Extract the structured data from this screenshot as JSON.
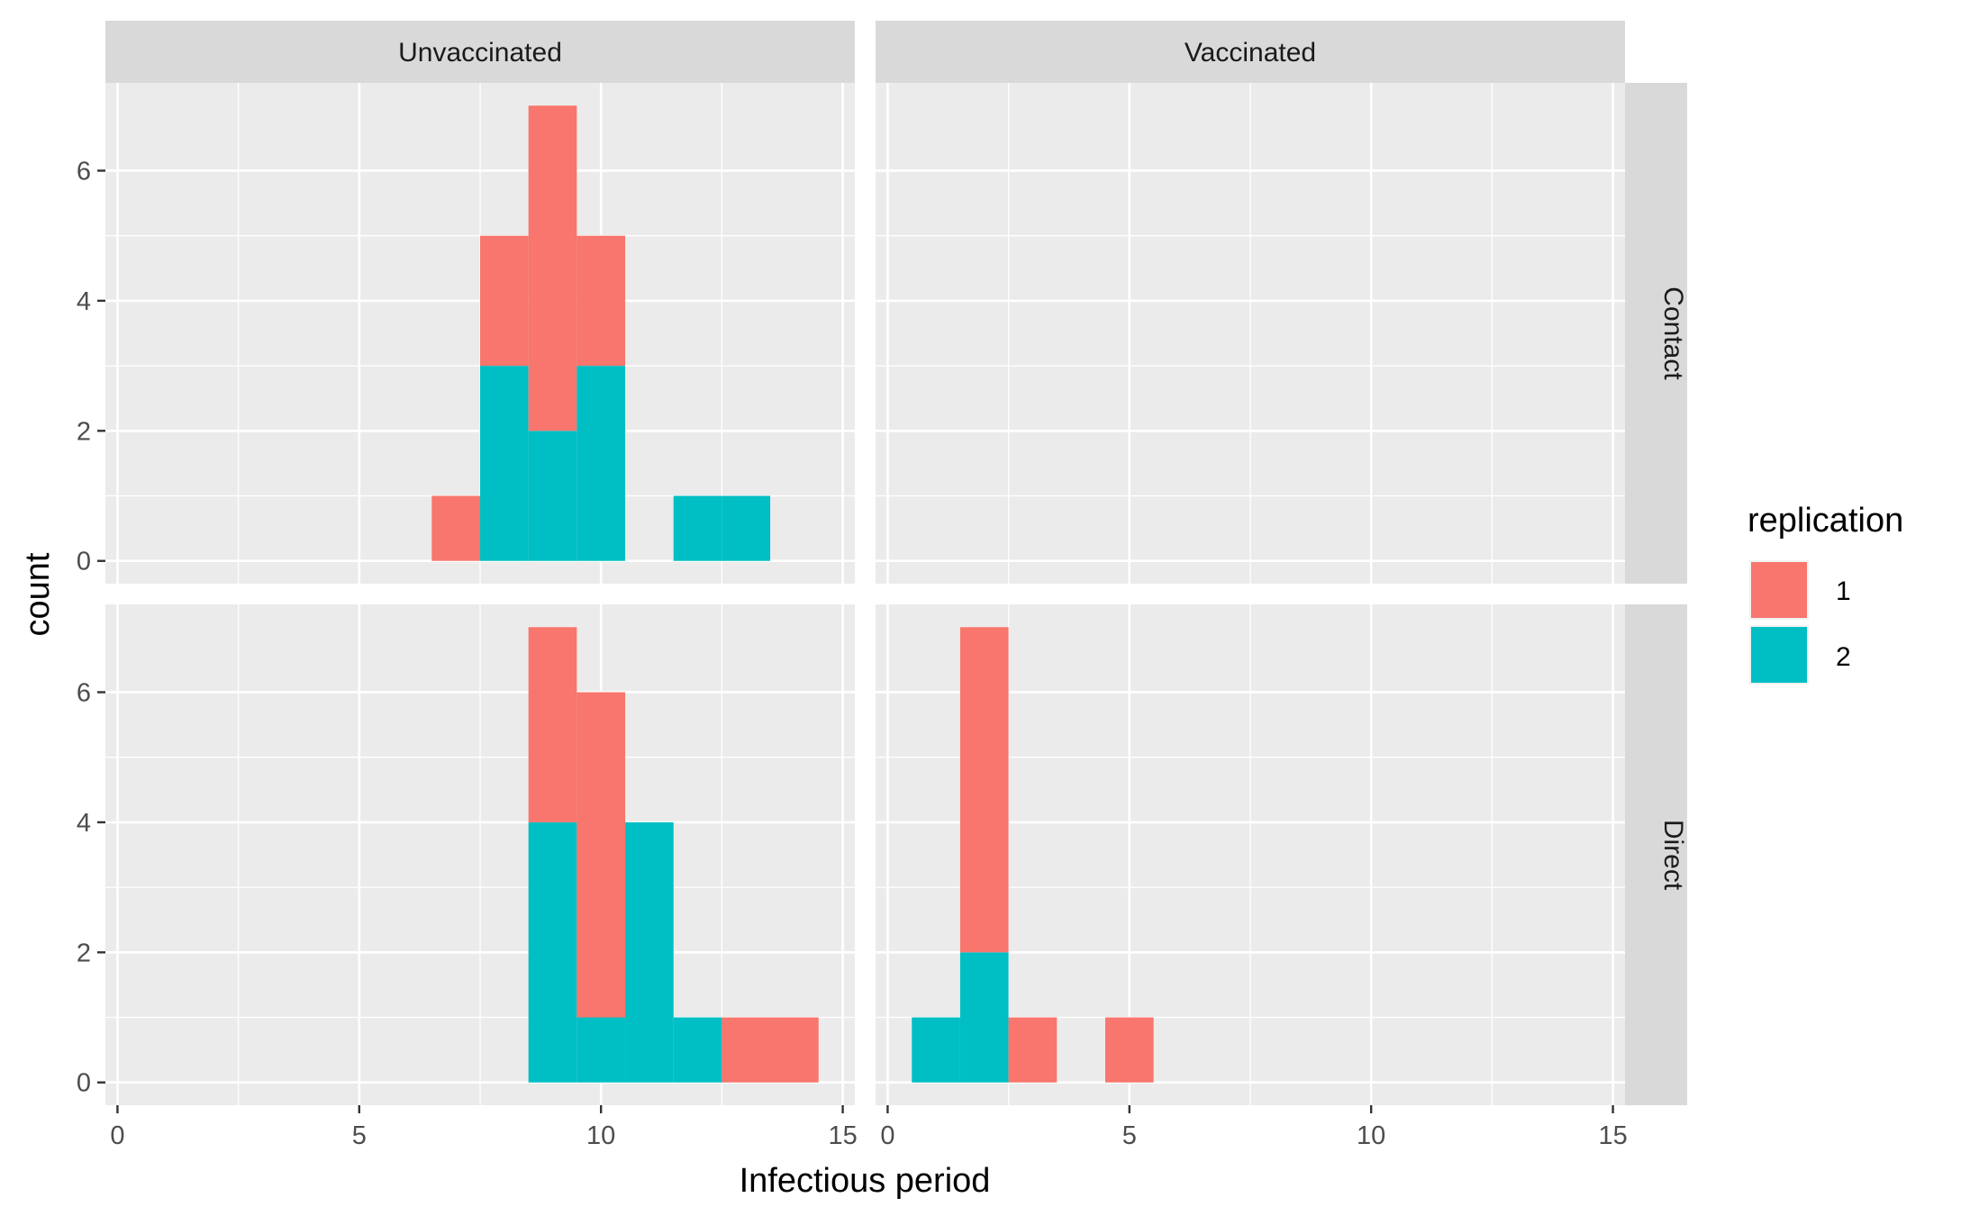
{
  "chart_data": {
    "type": "bar",
    "subtype": "stacked-histogram-faceted",
    "xlabel": "Infectious period",
    "ylabel": "count",
    "xlim": [
      -0.25,
      15.25
    ],
    "ylim": [
      -0.35,
      7.35
    ],
    "x_ticks": [
      0,
      5,
      10,
      15
    ],
    "y_ticks": [
      0,
      2,
      4,
      6
    ],
    "grid": true,
    "legend": {
      "title": "replication",
      "placement": "right",
      "entries": [
        {
          "label": "1",
          "color": "#F8766D"
        },
        {
          "label": "2",
          "color": "#00BFC4"
        }
      ]
    },
    "col_facets": [
      "Unvaccinated",
      "Vaccinated"
    ],
    "row_facets": [
      "Contact",
      "Direct"
    ],
    "bin_width": 1,
    "panels": [
      {
        "col": "Unvaccinated",
        "row": "Contact",
        "bins": [
          {
            "x": 7,
            "rep1": 1,
            "rep2": 0
          },
          {
            "x": 8,
            "rep1": 2,
            "rep2": 3
          },
          {
            "x": 9,
            "rep1": 5,
            "rep2": 2
          },
          {
            "x": 10,
            "rep1": 2,
            "rep2": 3
          },
          {
            "x": 12,
            "rep1": 0,
            "rep2": 1
          },
          {
            "x": 13,
            "rep1": 0,
            "rep2": 1
          }
        ]
      },
      {
        "col": "Vaccinated",
        "row": "Contact",
        "bins": []
      },
      {
        "col": "Unvaccinated",
        "row": "Direct",
        "bins": [
          {
            "x": 9,
            "rep1": 3,
            "rep2": 4
          },
          {
            "x": 10,
            "rep1": 5,
            "rep2": 1
          },
          {
            "x": 11,
            "rep1": 0,
            "rep2": 4
          },
          {
            "x": 12,
            "rep1": 0,
            "rep2": 1
          },
          {
            "x": 13,
            "rep1": 1,
            "rep2": 0
          },
          {
            "x": 14,
            "rep1": 1,
            "rep2": 0
          }
        ]
      },
      {
        "col": "Vaccinated",
        "row": "Direct",
        "bins": [
          {
            "x": 1,
            "rep1": 0,
            "rep2": 1
          },
          {
            "x": 2,
            "rep1": 5,
            "rep2": 2
          },
          {
            "x": 3,
            "rep1": 1,
            "rep2": 0
          },
          {
            "x": 5,
            "rep1": 1,
            "rep2": 0
          }
        ]
      }
    ]
  },
  "colors": {
    "panel_bg": "#EBEBEB",
    "strip_bg": "#D9D9D9",
    "grid": "#FFFFFF",
    "rep1": "#F8766D",
    "rep2": "#00BFC4"
  }
}
